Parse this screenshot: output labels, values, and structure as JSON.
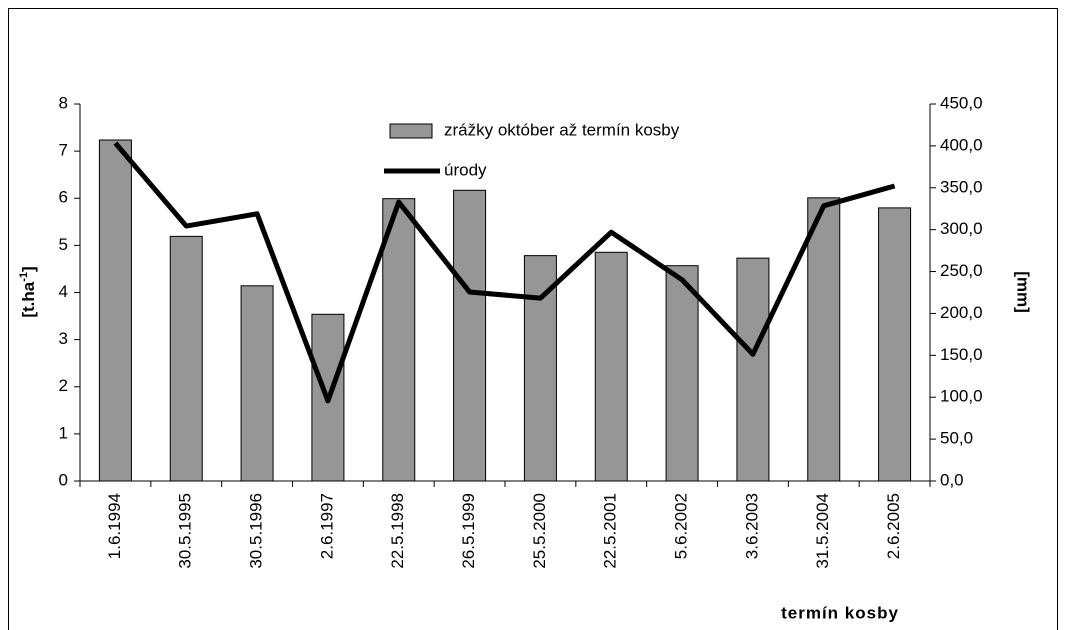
{
  "chart_data": {
    "type": "bar_line",
    "xlabel": "termín kosby",
    "ylabel": {
      "main": "[t.ha",
      "sup": "-1",
      "end": "]"
    },
    "y2label": "[mm]",
    "categories": [
      "1.6.1994",
      "30.5.1995",
      "30.5.1996",
      "2.6.1997",
      "22.5.1998",
      "26.5.1999",
      "25.5.2000",
      "22.5.2001",
      "5.6.2002",
      "3.6.2003",
      "31.5.2004",
      "2.6.2005"
    ],
    "series": [
      {
        "name": "zrážky október až termín kosby",
        "type": "bar",
        "axis": "y2",
        "color": "#969696",
        "values": [
          407,
          292,
          233,
          199,
          337,
          347,
          269,
          273,
          257,
          266,
          338,
          326
        ]
      },
      {
        "name": "úrody",
        "type": "line",
        "axis": "y",
        "color": "#000000",
        "values": [
          7.17,
          5.41,
          5.67,
          1.7,
          5.92,
          4.01,
          3.88,
          5.28,
          4.27,
          2.69,
          5.84,
          6.26
        ]
      }
    ],
    "ylim": [
      0,
      8
    ],
    "yticks": [
      0,
      1,
      2,
      3,
      4,
      5,
      6,
      7,
      8
    ],
    "y2lim": [
      0,
      450
    ],
    "y2ticks": [
      {
        "value": 0,
        "label": "0,0"
      },
      {
        "value": 50,
        "label": "50,0"
      },
      {
        "value": 100,
        "label": "100,0"
      },
      {
        "value": 150,
        "label": "150,0"
      },
      {
        "value": 200,
        "label": "200,0"
      },
      {
        "value": 250,
        "label": "250,0"
      },
      {
        "value": 300,
        "label": "300,0"
      },
      {
        "value": 350,
        "label": "350,0"
      },
      {
        "value": 400,
        "label": "400,0"
      },
      {
        "value": 450,
        "label": "450,0"
      }
    ]
  }
}
